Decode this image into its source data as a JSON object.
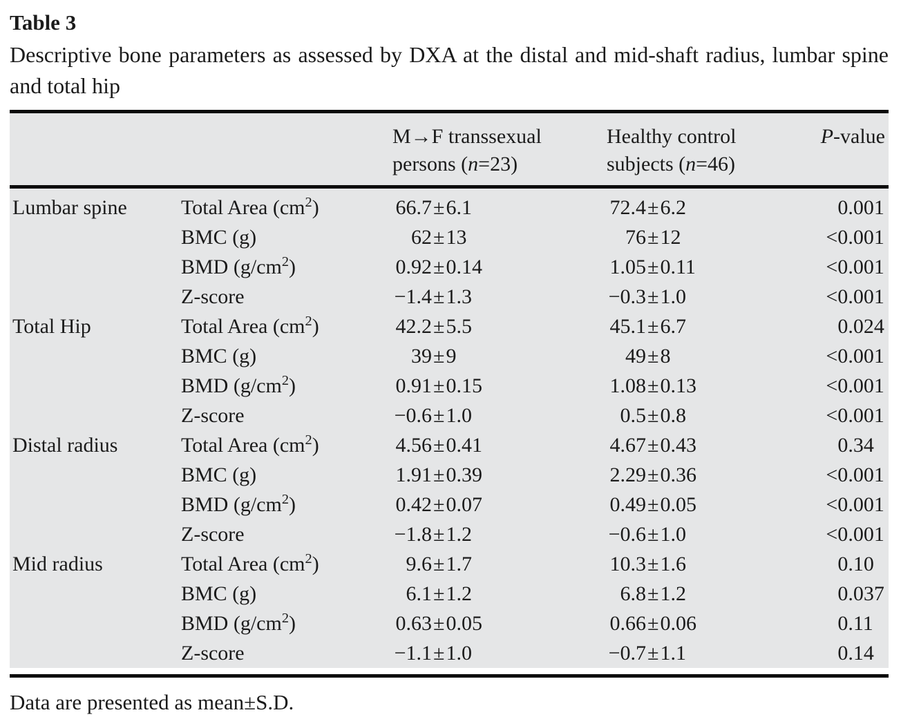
{
  "colors": {
    "page_bg": "#ffffff",
    "table_bg": "#e5e6e7",
    "rule": "#0a0a0a",
    "text": "#1b1b1b"
  },
  "paper": {
    "table_label": "Table 3",
    "caption": "Descriptive bone parameters as assessed by DXA at the distal and mid-shaft radius, lumbar spine and total hip",
    "footnote": "Data are presented as mean±S.D."
  },
  "table": {
    "header": {
      "region_col": "",
      "parameter_col": "",
      "mtf": {
        "line1": "M→F transsexual",
        "line2_pre": "persons (",
        "line2_italic": "n",
        "line2_post": "=23)"
      },
      "control": {
        "line1": "Healthy control",
        "line2_pre": "subjects (",
        "line2_italic": "n",
        "line2_post": "=46)"
      },
      "pvalue": {
        "italic": "P",
        "post": "-value"
      }
    },
    "sections": [
      {
        "region": "Lumbar spine",
        "rows": [
          {
            "param": "Total Area (cm^2)",
            "mtf": "66.7±6.1",
            "control": "72.4±6.2",
            "p": "0.001"
          },
          {
            "param": "BMC (g)",
            "mtf": "62±13",
            "control": "76±12",
            "p": "<0.001"
          },
          {
            "param": "BMD (g/cm^2)",
            "mtf": "0.92±0.14",
            "control": "1.05±0.11",
            "p": "<0.001"
          },
          {
            "param": "Z-score",
            "mtf": "−1.4±1.3",
            "control": "−0.3±1.0",
            "p": "<0.001"
          }
        ]
      },
      {
        "region": "Total Hip",
        "rows": [
          {
            "param": "Total Area (cm^2)",
            "mtf": "42.2±5.5",
            "control": "45.1±6.7",
            "p": "0.024"
          },
          {
            "param": "BMC (g)",
            "mtf": "39±9",
            "control": "49±8",
            "p": "<0.001"
          },
          {
            "param": "BMD (g/cm^2)",
            "mtf": "0.91±0.15",
            "control": "1.08±0.13",
            "p": "<0.001"
          },
          {
            "param": "Z-score",
            "mtf": "−0.6±1.0",
            "control": "0.5±0.8",
            "p": "<0.001"
          }
        ]
      },
      {
        "region": "Distal radius",
        "rows": [
          {
            "param": "Total Area (cm^2)",
            "mtf": "4.56±0.41",
            "control": "4.67±0.43",
            "p": "0.34"
          },
          {
            "param": "BMC (g)",
            "mtf": "1.91±0.39",
            "control": "2.29±0.36",
            "p": "<0.001"
          },
          {
            "param": "BMD (g/cm^2)",
            "mtf": "0.42±0.07",
            "control": "0.49±0.05",
            "p": "<0.001"
          },
          {
            "param": "Z-score",
            "mtf": "−1.8±1.2",
            "control": "−0.6±1.0",
            "p": "<0.001"
          }
        ]
      },
      {
        "region": "Mid radius",
        "rows": [
          {
            "param": "Total Area (cm^2)",
            "mtf": "9.6±1.7",
            "control": "10.3±1.6",
            "p": "0.10"
          },
          {
            "param": "BMC (g)",
            "mtf": "6.1±1.2",
            "control": "6.8±1.2",
            "p": "0.037"
          },
          {
            "param": "BMD (g/cm^2)",
            "mtf": "0.63±0.05",
            "control": "0.66±0.06",
            "p": "0.11"
          },
          {
            "param": "Z-score",
            "mtf": "−1.1±1.0",
            "control": "−0.7±1.1",
            "p": "0.14"
          }
        ]
      }
    ]
  }
}
